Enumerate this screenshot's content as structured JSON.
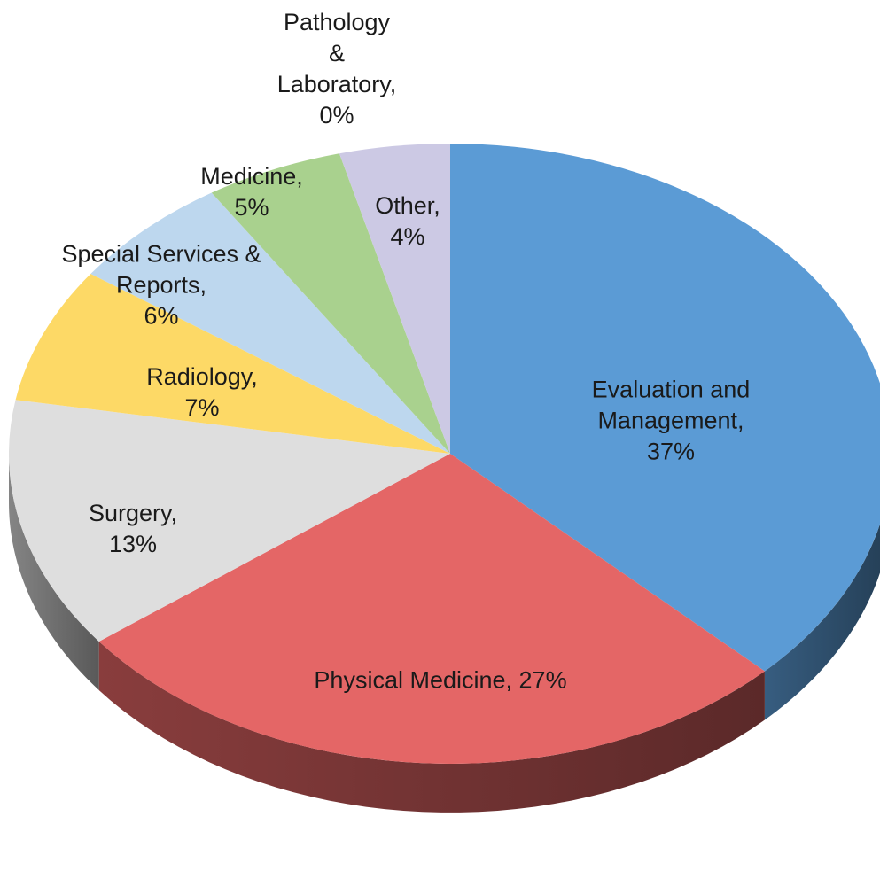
{
  "chart_data": {
    "type": "pie",
    "categories": [
      "Evaluation and Management,",
      "Physical Medicine,",
      "Surgery,",
      "Radiology,",
      "Special Services & Reports,",
      "Medicine,",
      "Pathology & Laboratory,",
      "Other,"
    ],
    "values": [
      37,
      27,
      13,
      7,
      6,
      5,
      0,
      4
    ],
    "value_labels": [
      "37%",
      "27%",
      "13%",
      "7%",
      "6%",
      "5%",
      "0%",
      "4%"
    ],
    "colors": [
      "#5b9bd5",
      "#e46666",
      "#dedede",
      "#fdd966",
      "#bdd7ee",
      "#a9d18e",
      "#f4b183",
      "#ccc9e4"
    ],
    "start_angle": 0,
    "direction": "clockwise",
    "3d": true
  }
}
